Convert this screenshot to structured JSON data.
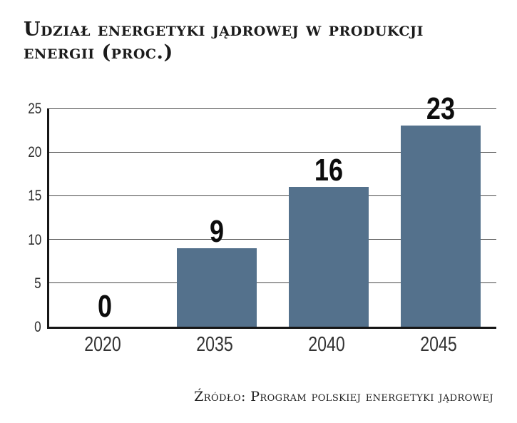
{
  "header": {
    "title_line1": "Udział energetyki jądrowej w produkcji",
    "title_line2": "energii (proc.)"
  },
  "source": {
    "text": "Źródło: Program polskiej energetyki jądrowej"
  },
  "colors": {
    "bar": "#54718c",
    "grid": "#4a4a4a",
    "axis": "#161616",
    "title_text": "#1b1b1b",
    "value_label": "#0d0d0d",
    "tick_label": "#333333"
  },
  "chart_data": {
    "type": "bar",
    "title": "Udział energetyki jądrowej w produkcji energii (proc.)",
    "categories": [
      "2020",
      "2035",
      "2040",
      "2045"
    ],
    "values": [
      0,
      9,
      16,
      23
    ],
    "value_labels": [
      "0",
      "9",
      "16",
      "23"
    ],
    "xlabel": "",
    "ylabel": "",
    "ylim": [
      0,
      25
    ],
    "yticks": [
      0,
      5,
      10,
      15,
      20,
      25
    ],
    "grid": true,
    "legend": false,
    "source": "Źródło: Program polskiej energetyki jądrowej"
  }
}
